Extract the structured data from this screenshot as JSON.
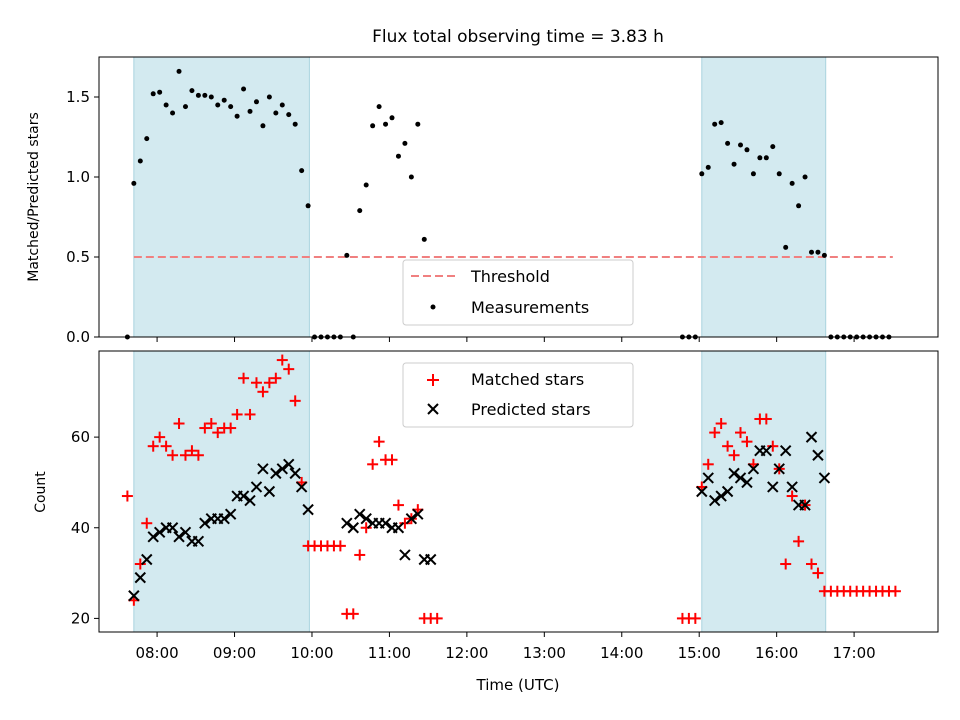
{
  "chart_data": [
    {
      "type": "scatter",
      "title": "Flux total observing time = 3.83 h",
      "xlabel": "",
      "ylabel": "Matched/Predicted stars",
      "ylim": [
        0,
        1.75
      ],
      "yticks": [
        "0.0",
        "0.5",
        "1.0",
        "1.5"
      ],
      "grid": false,
      "legend_position": "bottom-center",
      "highlight_color": "#d3eaf0",
      "highlight_spans": [
        [
          "07:42",
          "09:58"
        ],
        [
          "15:02",
          "16:38"
        ]
      ],
      "threshold": {
        "name": "Threshold",
        "value": 0.5,
        "x_range": [
          "07:42",
          "17:30"
        ],
        "color": "#f08080"
      },
      "series": [
        {
          "name": "Measurements",
          "color": "#000000",
          "points": [
            [
              "07:37",
              0.0
            ],
            [
              "07:42",
              0.96
            ],
            [
              "07:47",
              1.1
            ],
            [
              "07:52",
              1.24
            ],
            [
              "07:57",
              1.52
            ],
            [
              "08:02",
              1.53
            ],
            [
              "08:07",
              1.45
            ],
            [
              "08:12",
              1.4
            ],
            [
              "08:17",
              1.66
            ],
            [
              "08:22",
              1.44
            ],
            [
              "08:27",
              1.54
            ],
            [
              "08:32",
              1.51
            ],
            [
              "08:37",
              1.51
            ],
            [
              "08:42",
              1.5
            ],
            [
              "08:47",
              1.45
            ],
            [
              "08:52",
              1.48
            ],
            [
              "08:57",
              1.44
            ],
            [
              "09:02",
              1.38
            ],
            [
              "09:07",
              1.55
            ],
            [
              "09:12",
              1.41
            ],
            [
              "09:17",
              1.47
            ],
            [
              "09:22",
              1.32
            ],
            [
              "09:27",
              1.5
            ],
            [
              "09:32",
              1.4
            ],
            [
              "09:37",
              1.45
            ],
            [
              "09:42",
              1.39
            ],
            [
              "09:47",
              1.33
            ],
            [
              "09:52",
              1.04
            ],
            [
              "09:57",
              0.82
            ],
            [
              "10:02",
              0.0
            ],
            [
              "10:07",
              0.0
            ],
            [
              "10:12",
              0.0
            ],
            [
              "10:17",
              0.0
            ],
            [
              "10:22",
              0.0
            ],
            [
              "10:27",
              0.51
            ],
            [
              "10:32",
              0.0
            ],
            [
              "10:37",
              0.79
            ],
            [
              "10:42",
              0.95
            ],
            [
              "10:47",
              1.32
            ],
            [
              "10:52",
              1.44
            ],
            [
              "10:57",
              1.33
            ],
            [
              "11:02",
              1.37
            ],
            [
              "11:07",
              1.13
            ],
            [
              "11:12",
              1.21
            ],
            [
              "11:17",
              1.0
            ],
            [
              "11:22",
              1.33
            ],
            [
              "11:27",
              0.61
            ],
            [
              "14:47",
              0.0
            ],
            [
              "14:52",
              0.0
            ],
            [
              "14:57",
              0.0
            ],
            [
              "15:02",
              1.02
            ],
            [
              "15:07",
              1.06
            ],
            [
              "15:12",
              1.33
            ],
            [
              "15:17",
              1.34
            ],
            [
              "15:22",
              1.21
            ],
            [
              "15:27",
              1.08
            ],
            [
              "15:32",
              1.2
            ],
            [
              "15:37",
              1.17
            ],
            [
              "15:42",
              1.02
            ],
            [
              "15:47",
              1.12
            ],
            [
              "15:52",
              1.12
            ],
            [
              "15:57",
              1.19
            ],
            [
              "16:02",
              1.02
            ],
            [
              "16:07",
              0.56
            ],
            [
              "16:12",
              0.96
            ],
            [
              "16:17",
              0.82
            ],
            [
              "16:22",
              1.0
            ],
            [
              "16:27",
              0.53
            ],
            [
              "16:32",
              0.53
            ],
            [
              "16:37",
              0.51
            ],
            [
              "16:42",
              0.0
            ],
            [
              "16:47",
              0.0
            ],
            [
              "16:52",
              0.0
            ],
            [
              "16:57",
              0.0
            ],
            [
              "17:02",
              0.0
            ],
            [
              "17:07",
              0.0
            ],
            [
              "17:12",
              0.0
            ],
            [
              "17:17",
              0.0
            ],
            [
              "17:22",
              0.0
            ],
            [
              "17:27",
              0.0
            ]
          ]
        }
      ]
    },
    {
      "type": "scatter",
      "title": "",
      "xlabel": "Time (UTC)",
      "ylabel": "Count",
      "ylim": [
        17,
        79
      ],
      "yticks": [
        "20",
        "40",
        "60"
      ],
      "xticks": [
        "08:00",
        "09:00",
        "10:00",
        "11:00",
        "12:00",
        "13:00",
        "14:00",
        "15:00",
        "16:00",
        "17:00"
      ],
      "xlim": [
        "07:15",
        "18:05"
      ],
      "grid": false,
      "legend_position": "top-center",
      "highlight_color": "#d3eaf0",
      "highlight_spans": [
        [
          "07:42",
          "09:58"
        ],
        [
          "15:02",
          "16:38"
        ]
      ],
      "series": [
        {
          "name": "Matched stars",
          "marker": "plus",
          "color": "#ff0000",
          "points": [
            [
              "07:37",
              47
            ],
            [
              "07:42",
              24
            ],
            [
              "07:47",
              32
            ],
            [
              "07:52",
              41
            ],
            [
              "07:57",
              58
            ],
            [
              "08:02",
              60
            ],
            [
              "08:07",
              58
            ],
            [
              "08:12",
              56
            ],
            [
              "08:17",
              63
            ],
            [
              "08:22",
              56
            ],
            [
              "08:27",
              57
            ],
            [
              "08:32",
              56
            ],
            [
              "08:37",
              62
            ],
            [
              "08:42",
              63
            ],
            [
              "08:47",
              61
            ],
            [
              "08:52",
              62
            ],
            [
              "08:57",
              62
            ],
            [
              "09:02",
              65
            ],
            [
              "09:07",
              73
            ],
            [
              "09:12",
              65
            ],
            [
              "09:17",
              72
            ],
            [
              "09:22",
              70
            ],
            [
              "09:27",
              72
            ],
            [
              "09:32",
              73
            ],
            [
              "09:37",
              77
            ],
            [
              "09:42",
              75
            ],
            [
              "09:47",
              68
            ],
            [
              "09:52",
              50
            ],
            [
              "09:57",
              36
            ],
            [
              "10:02",
              36
            ],
            [
              "10:07",
              36
            ],
            [
              "10:12",
              36
            ],
            [
              "10:17",
              36
            ],
            [
              "10:22",
              36
            ],
            [
              "10:27",
              21
            ],
            [
              "10:32",
              21
            ],
            [
              "10:37",
              34
            ],
            [
              "10:42",
              40
            ],
            [
              "10:47",
              54
            ],
            [
              "10:52",
              59
            ],
            [
              "10:57",
              55
            ],
            [
              "11:02",
              55
            ],
            [
              "11:07",
              45
            ],
            [
              "11:12",
              41
            ],
            [
              "11:17",
              42
            ],
            [
              "11:22",
              44
            ],
            [
              "11:27",
              20
            ],
            [
              "11:32",
              20
            ],
            [
              "11:37",
              20
            ],
            [
              "14:47",
              20
            ],
            [
              "14:52",
              20
            ],
            [
              "14:57",
              20
            ],
            [
              "15:02",
              49
            ],
            [
              "15:07",
              54
            ],
            [
              "15:12",
              61
            ],
            [
              "15:17",
              63
            ],
            [
              "15:22",
              58
            ],
            [
              "15:27",
              56
            ],
            [
              "15:32",
              61
            ],
            [
              "15:37",
              59
            ],
            [
              "15:42",
              54
            ],
            [
              "15:47",
              64
            ],
            [
              "15:52",
              64
            ],
            [
              "15:57",
              58
            ],
            [
              "16:02",
              53
            ],
            [
              "16:07",
              32
            ],
            [
              "16:12",
              47
            ],
            [
              "16:17",
              37
            ],
            [
              "16:22",
              45
            ],
            [
              "16:27",
              32
            ],
            [
              "16:32",
              30
            ],
            [
              "16:37",
              26
            ],
            [
              "16:42",
              26
            ],
            [
              "16:47",
              26
            ],
            [
              "16:52",
              26
            ],
            [
              "16:57",
              26
            ],
            [
              "17:02",
              26
            ],
            [
              "17:07",
              26
            ],
            [
              "17:12",
              26
            ],
            [
              "17:17",
              26
            ],
            [
              "17:22",
              26
            ],
            [
              "17:27",
              26
            ],
            [
              "17:32",
              26
            ]
          ]
        },
        {
          "name": "Predicted stars",
          "marker": "x",
          "color": "#000000",
          "points": [
            [
              "07:42",
              25
            ],
            [
              "07:47",
              29
            ],
            [
              "07:52",
              33
            ],
            [
              "07:57",
              38
            ],
            [
              "08:02",
              39
            ],
            [
              "08:07",
              40
            ],
            [
              "08:12",
              40
            ],
            [
              "08:17",
              38
            ],
            [
              "08:22",
              39
            ],
            [
              "08:27",
              37
            ],
            [
              "08:32",
              37
            ],
            [
              "08:37",
              41
            ],
            [
              "08:42",
              42
            ],
            [
              "08:47",
              42
            ],
            [
              "08:52",
              42
            ],
            [
              "08:57",
              43
            ],
            [
              "09:02",
              47
            ],
            [
              "09:07",
              47
            ],
            [
              "09:12",
              46
            ],
            [
              "09:17",
              49
            ],
            [
              "09:22",
              53
            ],
            [
              "09:27",
              48
            ],
            [
              "09:32",
              52
            ],
            [
              "09:37",
              53
            ],
            [
              "09:42",
              54
            ],
            [
              "09:47",
              52
            ],
            [
              "09:52",
              49
            ],
            [
              "09:57",
              44
            ],
            [
              "10:27",
              41
            ],
            [
              "10:32",
              40
            ],
            [
              "10:37",
              43
            ],
            [
              "10:42",
              42
            ],
            [
              "10:47",
              41
            ],
            [
              "10:52",
              41
            ],
            [
              "10:57",
              41
            ],
            [
              "11:02",
              40
            ],
            [
              "11:07",
              40
            ],
            [
              "11:12",
              34
            ],
            [
              "11:17",
              42
            ],
            [
              "11:22",
              43
            ],
            [
              "11:27",
              33
            ],
            [
              "11:32",
              33
            ],
            [
              "15:02",
              48
            ],
            [
              "15:07",
              51
            ],
            [
              "15:12",
              46
            ],
            [
              "15:17",
              47
            ],
            [
              "15:22",
              48
            ],
            [
              "15:27",
              52
            ],
            [
              "15:32",
              51
            ],
            [
              "15:37",
              50
            ],
            [
              "15:42",
              53
            ],
            [
              "15:47",
              57
            ],
            [
              "15:52",
              57
            ],
            [
              "15:57",
              49
            ],
            [
              "16:02",
              53
            ],
            [
              "16:07",
              57
            ],
            [
              "16:12",
              49
            ],
            [
              "16:17",
              45
            ],
            [
              "16:22",
              45
            ],
            [
              "16:27",
              60
            ],
            [
              "16:32",
              56
            ],
            [
              "16:37",
              51
            ]
          ]
        }
      ]
    }
  ]
}
